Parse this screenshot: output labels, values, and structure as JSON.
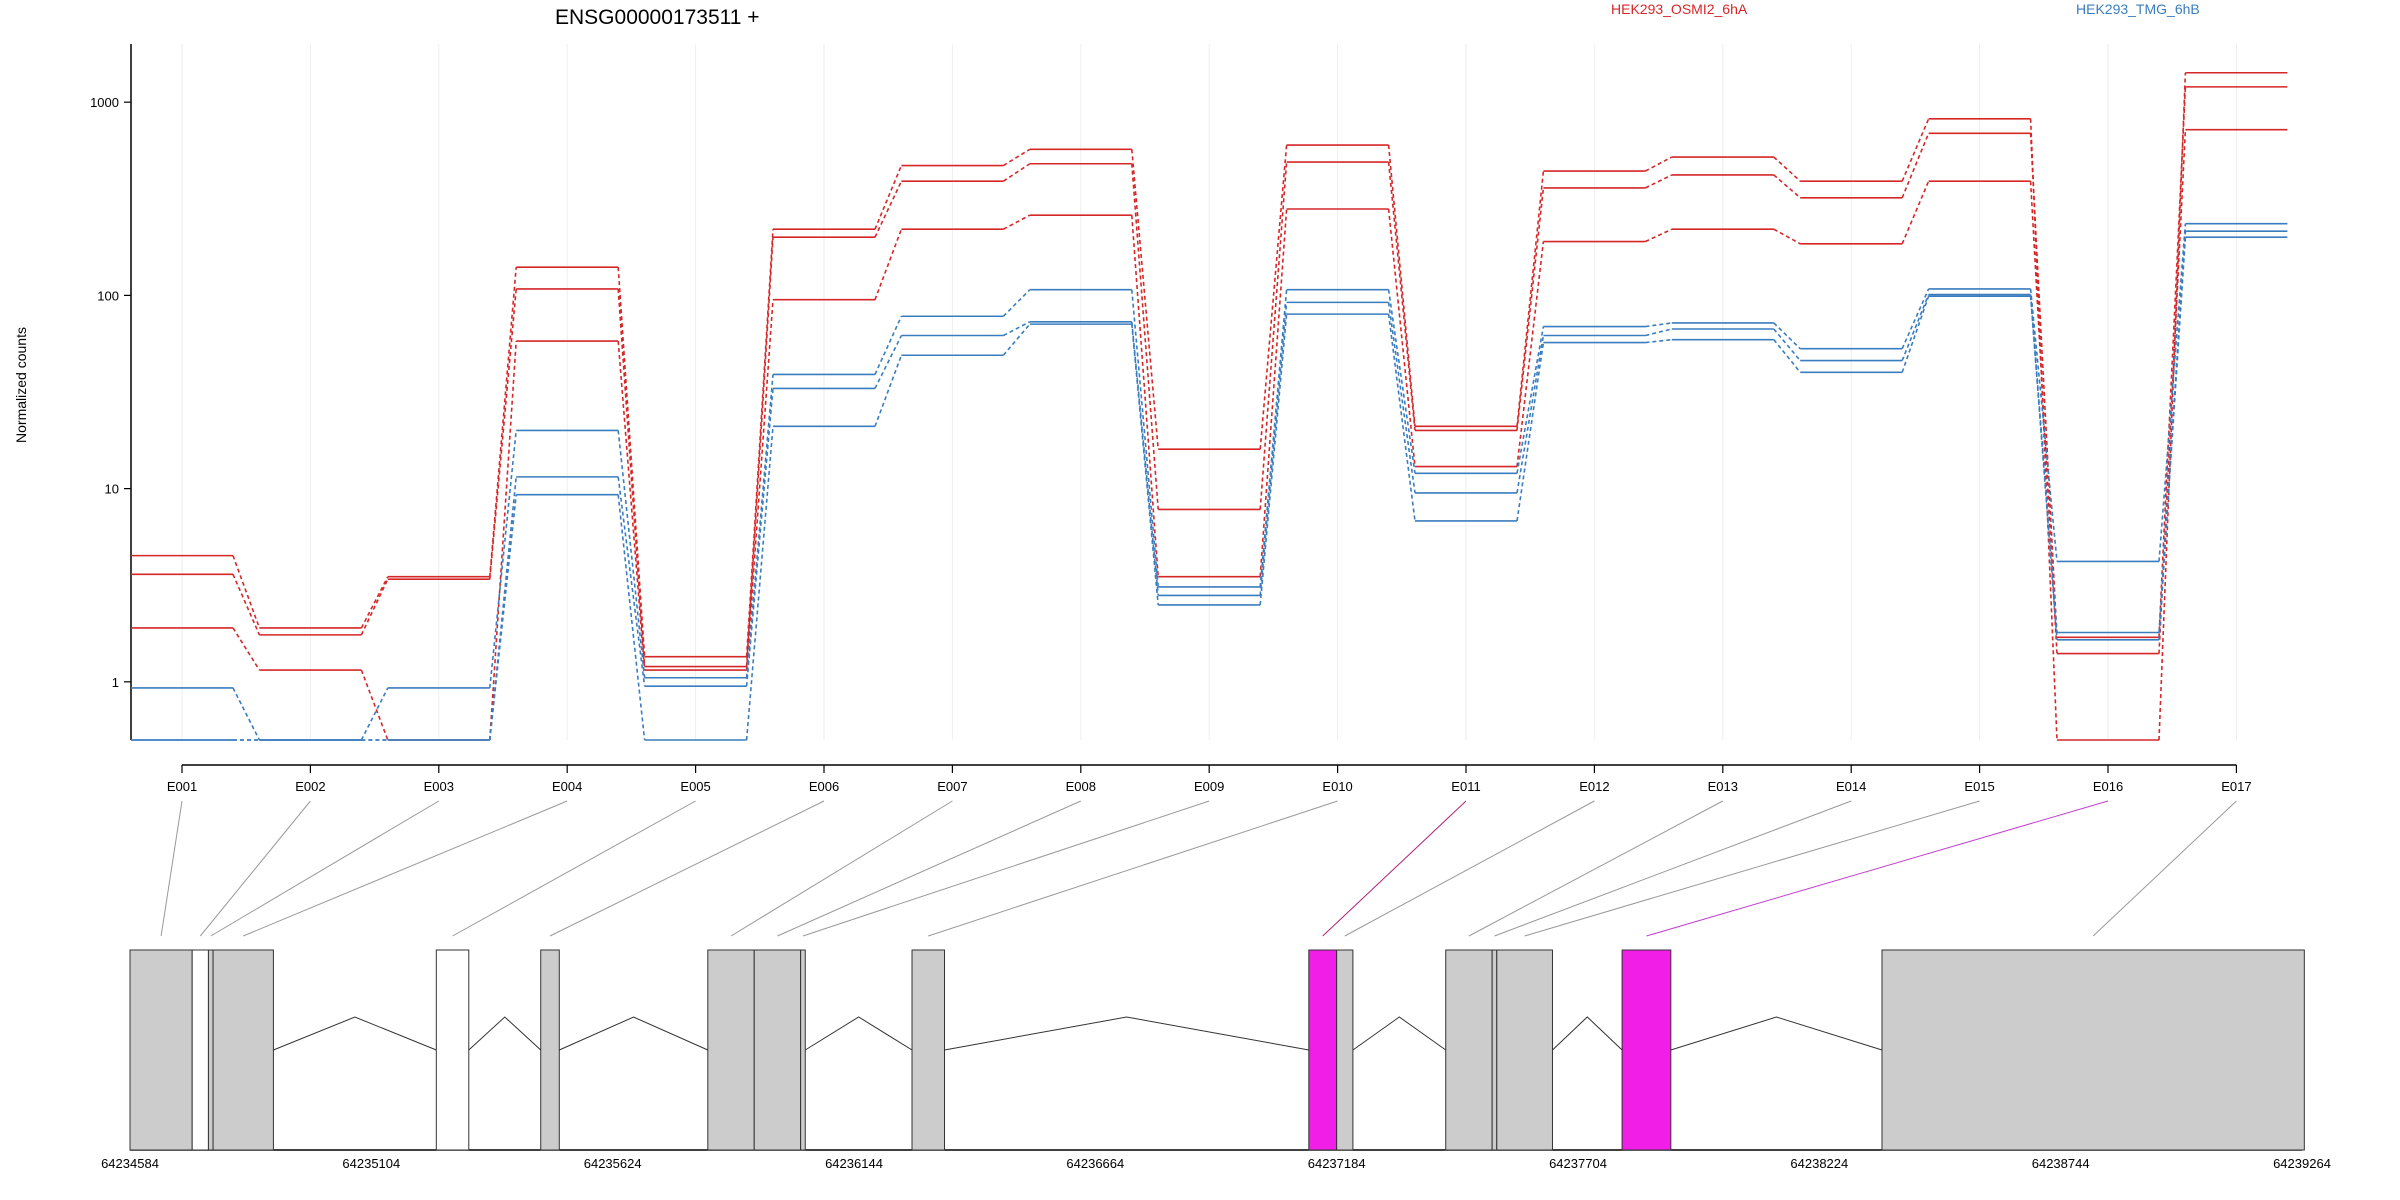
{
  "chart_data": {
    "type": "line",
    "title": "ENSG00000173511 +",
    "xlabel": "",
    "ylabel": "Normalized counts",
    "y_scale": "log",
    "ylim": [
      0.5,
      2000
    ],
    "y_ticks": [
      1,
      10,
      100,
      1000
    ],
    "grid": true,
    "legend_position": "top",
    "categories": [
      "E001",
      "E002",
      "E003",
      "E004",
      "E005",
      "E006",
      "E007",
      "E008",
      "E009",
      "E010",
      "E011",
      "E012",
      "E013",
      "E014",
      "E015",
      "E016",
      "E017"
    ],
    "colors": {
      "HEK293_OSMI2_6hA": "#d62728",
      "HEK293_TMG_6hB": "#3a7dbf"
    },
    "legend": [
      {
        "name": "HEK293_OSMI2_6hA",
        "color": "#d62728"
      },
      {
        "name": "HEK293_TMG_6hB",
        "color": "#3a7dbf"
      }
    ],
    "series": [
      {
        "group": "HEK293_OSMI2_6hA",
        "values": [
          4.5,
          1.9,
          3.5,
          140,
          1.35,
          220,
          470,
          570,
          16,
          600,
          21,
          440,
          520,
          390,
          820,
          0.5,
          1420
        ]
      },
      {
        "group": "HEK293_OSMI2_6hA",
        "values": [
          3.6,
          1.75,
          3.4,
          108,
          1.2,
          200,
          390,
          480,
          7.8,
          490,
          20,
          360,
          420,
          320,
          690,
          1.7,
          1200
        ]
      },
      {
        "group": "HEK293_OSMI2_6hA",
        "values": [
          1.9,
          1.15,
          0.5,
          58,
          1.15,
          95,
          220,
          260,
          3.5,
          280,
          13,
          190,
          220,
          185,
          390,
          1.4,
          720
        ]
      },
      {
        "group": "HEK293_TMG_6hB",
        "values": [
          0.93,
          0.5,
          0.93,
          20,
          1.05,
          39,
          78,
          107,
          3.1,
          107,
          12,
          69,
          72,
          53,
          108,
          4.2,
          235
        ]
      },
      {
        "group": "HEK293_TMG_6hB",
        "values": [
          0.5,
          0.5,
          0.5,
          11.5,
          0.95,
          33,
          62,
          73,
          2.8,
          92,
          9.5,
          62,
          67,
          46,
          101,
          1.8,
          215
        ]
      },
      {
        "group": "HEK293_TMG_6hB",
        "values": [
          0.5,
          0.5,
          0.5,
          9.3,
          0.5,
          21,
          49,
          71,
          2.5,
          80,
          6.8,
          57,
          59,
          40,
          99,
          1.65,
          200
        ]
      }
    ],
    "genomic_coordinates": {
      "range": [
        64234584,
        64239264
      ],
      "tick_labels": [
        "64234584",
        "64235104",
        "64235624",
        "64236144",
        "64236664",
        "64237184",
        "64237704",
        "64238224",
        "64238744",
        "64239264"
      ],
      "exons": [
        {
          "id": "E001",
          "start": 64234584,
          "end": 64234718,
          "color": "#cccccc",
          "link": "#999999"
        },
        {
          "id": "E002",
          "start": 64234718,
          "end": 64234753,
          "color": "#ffffff",
          "link": "#999999"
        },
        {
          "id": "E003",
          "start": 64234753,
          "end": 64234763,
          "color": "#cccccc",
          "link": "#999999"
        },
        {
          "id": "E004",
          "start": 64234763,
          "end": 64234893,
          "color": "#cccccc",
          "link": "#999999"
        },
        {
          "id": "E005",
          "start": 64235244,
          "end": 64235314,
          "color": "#ffffff",
          "link": "#999999"
        },
        {
          "id": "E006",
          "start": 64235469,
          "end": 64235509,
          "color": "#cccccc",
          "link": "#999999"
        },
        {
          "id": "E007",
          "start": 64235829,
          "end": 64235929,
          "color": "#cccccc",
          "link": "#999999"
        },
        {
          "id": "E008",
          "start": 64235929,
          "end": 64236029,
          "color": "#cccccc",
          "link": "#999999"
        },
        {
          "id": "E009",
          "start": 64236029,
          "end": 64236039,
          "color": "#cccccc",
          "link": "#999999"
        },
        {
          "id": "E010",
          "start": 64236269,
          "end": 64236339,
          "color": "#cccccc",
          "link": "#999999"
        },
        {
          "id": "E011",
          "start": 64237124,
          "end": 64237184,
          "color": "#f01ee6",
          "link": "#b0207a"
        },
        {
          "id": "E012",
          "start": 64237184,
          "end": 64237219,
          "color": "#cccccc",
          "link": "#999999"
        },
        {
          "id": "E013",
          "start": 64237419,
          "end": 64237519,
          "color": "#cccccc",
          "link": "#999999"
        },
        {
          "id": "E014",
          "start": 64237519,
          "end": 64237529,
          "color": "#cccccc",
          "link": "#999999"
        },
        {
          "id": "E015",
          "start": 64237529,
          "end": 64237649,
          "color": "#cccccc",
          "link": "#999999"
        },
        {
          "id": "E016",
          "start": 64237799,
          "end": 64237904,
          "color": "#f01ee6",
          "link": "#c040d0"
        },
        {
          "id": "E017",
          "start": 64238359,
          "end": 64239269,
          "color": "#cccccc",
          "link": "#999999"
        }
      ],
      "introns": [
        {
          "from": 64234893,
          "to": 64235244
        },
        {
          "from": 64235314,
          "to": 64235469
        },
        {
          "from": 64235509,
          "to": 64235829
        },
        {
          "from": 64236039,
          "to": 64236269
        },
        {
          "from": 64236339,
          "to": 64237124
        },
        {
          "from": 64237219,
          "to": 64237419
        },
        {
          "from": 64237649,
          "to": 64237799
        },
        {
          "from": 64237904,
          "to": 64238359
        }
      ]
    }
  }
}
